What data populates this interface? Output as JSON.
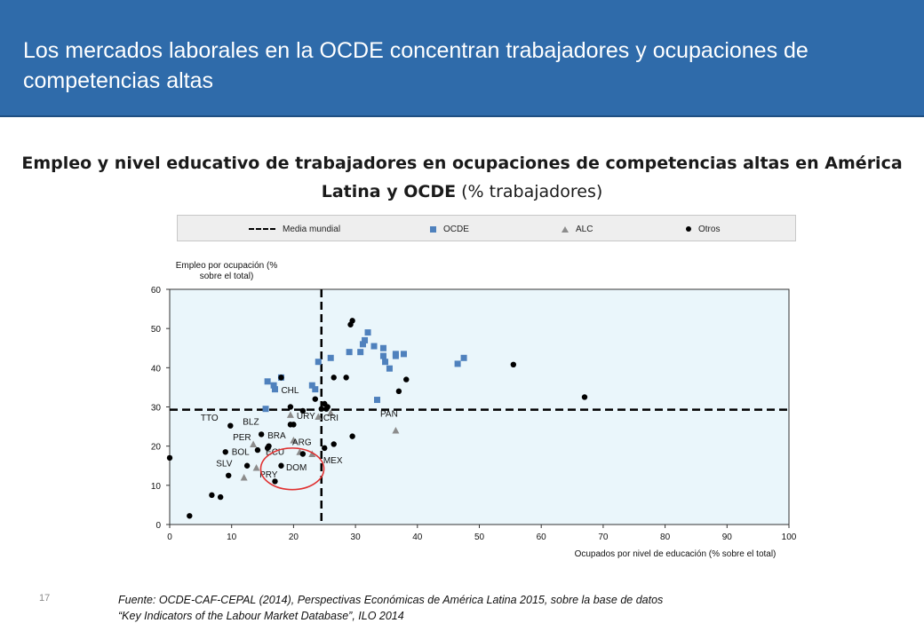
{
  "header": {
    "title": "Los mercados laborales en la OCDE concentran trabajadores y ocupaciones de competencias altas"
  },
  "chart_title": {
    "bold": "Empleo y nivel educativo de trabajadores en ocupaciones de competencias altas en América Latina y OCDE",
    "normal": " (% trabajadores)"
  },
  "legend": {
    "mean": "Media mundial",
    "oecd": "OCDE",
    "alc": "ALC",
    "others": "Otros"
  },
  "colors": {
    "header": "#2F6BAA",
    "oecd": "#4F81BD",
    "alc": "#8C8C8C",
    "others": "#000000",
    "plot_bg": "#EAF6FB",
    "circle": "#E03030"
  },
  "footer": {
    "page_number": "17",
    "source_line1": "Fuente: OCDE-CAF-CEPAL (2014), Perspectivas Económicas de América Latina 2015,  sobre la base de datos",
    "source_line2": "“Key Indicators of the Labour Market Database”, ILO 2014"
  },
  "chart_data": {
    "type": "scatter",
    "title": "Empleo y nivel educativo de trabajadores en ocupaciones de competencias altas en América Latina y OCDE (% trabajadores)",
    "xlabel": "Ocupados por nivel de educación (% sobre el total)",
    "ylabel_line1": "Empleo por ocupación (%",
    "ylabel_line2": "sobre el total)",
    "xlim": [
      0,
      100
    ],
    "ylim": [
      0,
      60
    ],
    "xticks": [
      0,
      10,
      20,
      30,
      40,
      50,
      60,
      70,
      80,
      90,
      100
    ],
    "yticks": [
      0,
      10,
      20,
      30,
      40,
      50,
      60
    ],
    "reference_lines": {
      "x": 24.5,
      "y": 29.3,
      "label": "Media mundial"
    },
    "series": [
      {
        "name": "OCDE",
        "marker": "square",
        "points": [
          [
            15.5,
            29.5
          ],
          [
            15.8,
            36.5
          ],
          [
            16.8,
            35.5
          ],
          [
            17.0,
            34.5
          ],
          [
            18.0,
            37.5
          ],
          [
            23.0,
            35.5
          ],
          [
            23.5,
            34.5
          ],
          [
            24.0,
            41.5
          ],
          [
            26.0,
            42.5
          ],
          [
            29.0,
            44.0
          ],
          [
            30.8,
            44.0
          ],
          [
            31.2,
            46.0
          ],
          [
            31.5,
            47.0
          ],
          [
            32.0,
            49.0
          ],
          [
            33.0,
            45.5
          ],
          [
            33.5,
            31.8
          ],
          [
            34.5,
            45.0
          ],
          [
            34.5,
            43.0
          ],
          [
            34.8,
            41.5
          ],
          [
            35.5,
            39.8
          ],
          [
            36.5,
            43.5
          ],
          [
            36.5,
            43.0
          ],
          [
            37.8,
            43.5
          ],
          [
            46.5,
            41.0
          ],
          [
            47.5,
            42.5
          ]
        ]
      },
      {
        "name": "ALC",
        "marker": "triangle",
        "points": [
          [
            12.0,
            12.0
          ],
          [
            13.5,
            20.5
          ],
          [
            14.0,
            14.5
          ],
          [
            19.5,
            28.0
          ],
          [
            20.0,
            21.5
          ],
          [
            21.0,
            18.5
          ],
          [
            23.0,
            18.0
          ],
          [
            24.0,
            27.5
          ],
          [
            26.0,
            28.5
          ],
          [
            36.5,
            24.0
          ]
        ]
      },
      {
        "name": "Otros",
        "marker": "circle",
        "points": [
          [
            0.0,
            17.0
          ],
          [
            3.2,
            2.2
          ],
          [
            6.8,
            7.5
          ],
          [
            8.2,
            7.0
          ],
          [
            9.0,
            18.5
          ],
          [
            9.5,
            12.5
          ],
          [
            9.8,
            25.2
          ],
          [
            12.5,
            15.0
          ],
          [
            14.2,
            19.0
          ],
          [
            14.8,
            23.0
          ],
          [
            15.8,
            19.5
          ],
          [
            16.0,
            20.0
          ],
          [
            17.0,
            11.0
          ],
          [
            18.0,
            15.0
          ],
          [
            18.0,
            37.5
          ],
          [
            19.5,
            25.5
          ],
          [
            19.5,
            30.0
          ],
          [
            20.0,
            25.5
          ],
          [
            21.5,
            29.0
          ],
          [
            21.5,
            18.0
          ],
          [
            23.5,
            32.0
          ],
          [
            24.5,
            29.5
          ],
          [
            25.0,
            30.8
          ],
          [
            25.3,
            29.5
          ],
          [
            25.0,
            19.5
          ],
          [
            25.5,
            30.0
          ],
          [
            26.5,
            37.5
          ],
          [
            26.5,
            20.5
          ],
          [
            28.5,
            37.5
          ],
          [
            29.2,
            51.0
          ],
          [
            29.5,
            52.0
          ],
          [
            29.5,
            22.5
          ],
          [
            37.0,
            34.0
          ],
          [
            38.2,
            37.0
          ],
          [
            55.5,
            40.8
          ],
          [
            67.0,
            32.5
          ]
        ]
      }
    ],
    "labels": [
      {
        "text": "CHL",
        "x": 18.0,
        "y": 33.5
      },
      {
        "text": "TTO",
        "x": 5.0,
        "y": 26.5
      },
      {
        "text": "BLZ",
        "x": 11.8,
        "y": 25.5
      },
      {
        "text": "URY",
        "x": 20.5,
        "y": 27.0
      },
      {
        "text": "CRI",
        "x": 24.8,
        "y": 26.5
      },
      {
        "text": "PAN",
        "x": 34.0,
        "y": 27.5
      },
      {
        "text": "BRA",
        "x": 15.8,
        "y": 22.0
      },
      {
        "text": "PER",
        "x": 10.2,
        "y": 21.5
      },
      {
        "text": "ARG",
        "x": 19.8,
        "y": 20.3
      },
      {
        "text": "BOL",
        "x": 10.0,
        "y": 17.8
      },
      {
        "text": "ECU",
        "x": 15.5,
        "y": 17.8
      },
      {
        "text": "MEX",
        "x": 24.8,
        "y": 15.6
      },
      {
        "text": "SLV",
        "x": 7.5,
        "y": 14.8
      },
      {
        "text": "DOM",
        "x": 18.8,
        "y": 13.8
      },
      {
        "text": "PRY",
        "x": 14.5,
        "y": 12.0
      }
    ],
    "highlight_circle": {
      "x": 19.8,
      "y": 14.2,
      "rx": 5.1,
      "ry": 5.3
    }
  }
}
